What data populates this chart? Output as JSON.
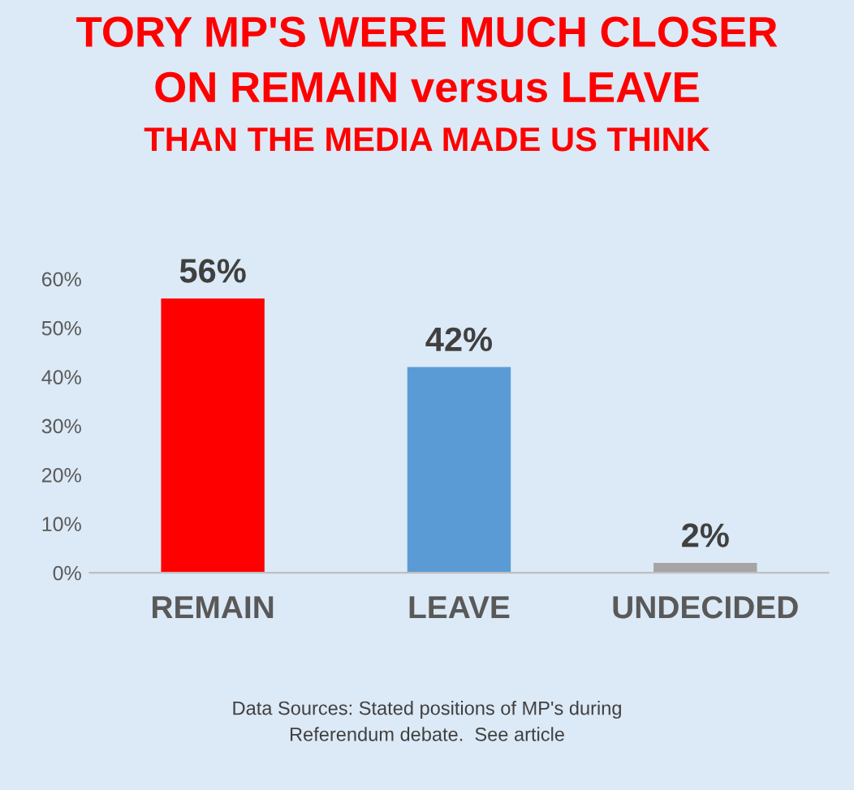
{
  "chart_data": {
    "type": "bar",
    "title": "TORY MP'S WERE MUCH CLOSER\nON REMAIN versus LEAVE\nTHAN THE MEDIA MADE US THINK",
    "categories": [
      "REMAIN",
      "LEAVE",
      "UNDECIDED"
    ],
    "values": [
      56,
      42,
      2
    ],
    "colors": [
      "#ff0000",
      "#5b9bd5",
      "#a5a5a5"
    ],
    "value_labels": [
      "56%",
      "42%",
      "2%"
    ],
    "ylim": [
      0,
      60
    ],
    "yticks": [
      {
        "value": 0,
        "label": "0%"
      },
      {
        "value": 10,
        "label": "10%"
      },
      {
        "value": 20,
        "label": "20%"
      },
      {
        "value": 30,
        "label": "30%"
      },
      {
        "value": 40,
        "label": "40%"
      },
      {
        "value": 50,
        "label": "50%"
      },
      {
        "value": 60,
        "label": "60%"
      }
    ],
    "grid": false,
    "legend": false,
    "annotations": [
      "Data Sources: Stated positions of MP's during\nReferendum debate.  See article"
    ]
  }
}
